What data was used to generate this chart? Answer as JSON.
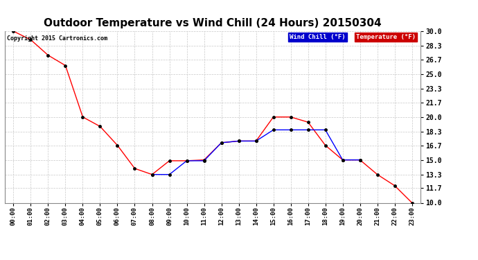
{
  "title": "Outdoor Temperature vs Wind Chill (24 Hours) 20150304",
  "copyright": "Copyright 2015 Cartronics.com",
  "x_labels": [
    "00:00",
    "01:00",
    "02:00",
    "03:00",
    "04:00",
    "05:00",
    "06:00",
    "07:00",
    "08:00",
    "09:00",
    "10:00",
    "11:00",
    "12:00",
    "13:00",
    "14:00",
    "15:00",
    "16:00",
    "17:00",
    "18:00",
    "19:00",
    "20:00",
    "21:00",
    "22:00",
    "23:00"
  ],
  "temperature": [
    30.0,
    29.0,
    27.2,
    26.0,
    20.0,
    18.9,
    16.7,
    14.0,
    13.3,
    14.9,
    14.9,
    15.0,
    17.0,
    17.2,
    17.2,
    20.0,
    20.0,
    19.4,
    16.7,
    15.0,
    15.0,
    13.3,
    12.0,
    10.0
  ],
  "wind_chill": [
    null,
    null,
    null,
    null,
    null,
    null,
    null,
    null,
    13.3,
    13.3,
    14.9,
    14.9,
    17.0,
    17.2,
    17.2,
    18.5,
    18.5,
    18.5,
    18.5,
    15.0,
    15.0,
    null,
    null,
    null
  ],
  "ylim": [
    10.0,
    30.0
  ],
  "yticks": [
    10.0,
    11.7,
    13.3,
    15.0,
    16.7,
    18.3,
    20.0,
    21.7,
    23.3,
    25.0,
    26.7,
    28.3,
    30.0
  ],
  "temp_color": "#ff0000",
  "wind_color": "#0000ff",
  "background_color": "#ffffff",
  "grid_color": "#c8c8c8",
  "title_fontsize": 11,
  "legend_wind_bg": "#0000cc",
  "legend_temp_bg": "#cc0000"
}
